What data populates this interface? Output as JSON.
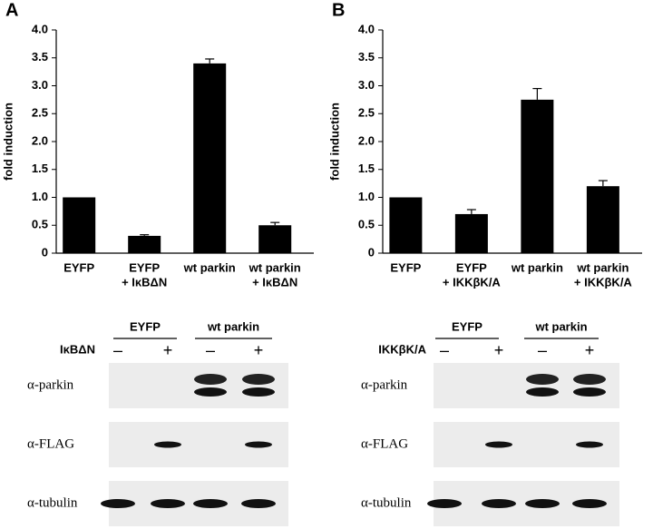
{
  "chart_data": [
    {
      "type": "bar",
      "panel": "A",
      "y_label": "fold induction",
      "categories": [
        [
          "EYFP"
        ],
        [
          "EYFP",
          "+ IκBΔN"
        ],
        [
          "wt parkin"
        ],
        [
          "wt parkin",
          "+ IκBΔN"
        ]
      ],
      "values": [
        1.0,
        0.31,
        3.4,
        0.5
      ],
      "errors": [
        0,
        0.02,
        0.08,
        0.05
      ],
      "color": "#000000",
      "ylim": [
        0,
        4.0
      ],
      "yticks": [
        0,
        {
          "value": 0.5,
          "label": "0.5"
        },
        {
          "value": 1,
          "label": "1.0"
        },
        {
          "value": 1.5,
          "label": "1.5"
        },
        {
          "value": 2,
          "label": "2.0"
        },
        {
          "value": 2.5,
          "label": "2.5"
        },
        {
          "value": 3,
          "label": "3.0"
        },
        {
          "value": 3.5,
          "label": "3.5"
        },
        {
          "value": 4,
          "label": "4.0"
        }
      ]
    },
    {
      "type": "bar",
      "panel": "B",
      "y_label": "fold induction",
      "categories": [
        [
          "EYFP"
        ],
        [
          "EYFP",
          "+ IKKβK/A"
        ],
        [
          "wt parkin"
        ],
        [
          "wt parkin",
          "+ IKKβK/A"
        ]
      ],
      "values": [
        1.0,
        0.7,
        2.75,
        1.2
      ],
      "errors": [
        0,
        0.08,
        0.2,
        0.1
      ],
      "color": "#000000",
      "ylim": [
        0,
        4.0
      ],
      "yticks": [
        0,
        {
          "value": 0.5,
          "label": "0.5"
        },
        {
          "value": 1,
          "label": "1.0"
        },
        {
          "value": 1.5,
          "label": "1.5"
        },
        {
          "value": 2,
          "label": "2.0"
        },
        {
          "value": 2.5,
          "label": "2.5"
        },
        {
          "value": 3,
          "label": "3.0"
        },
        {
          "value": 3.5,
          "label": "3.5"
        },
        {
          "value": 4,
          "label": "4.0"
        }
      ]
    }
  ],
  "blots": [
    {
      "groups": [
        "EYFP",
        "wt parkin"
      ],
      "treatment": "IκBΔN",
      "signs": [
        "–",
        "+",
        "–",
        "+"
      ],
      "rows": [
        "α-parkin",
        "α-FLAG",
        "α-tubulin"
      ]
    },
    {
      "groups": [
        "EYFP",
        "wt parkin"
      ],
      "treatment": "IKKβK/A",
      "signs": [
        "–",
        "+",
        "–",
        "+"
      ],
      "rows": [
        "α-parkin",
        "α-FLAG",
        "α-tubulin"
      ]
    }
  ]
}
